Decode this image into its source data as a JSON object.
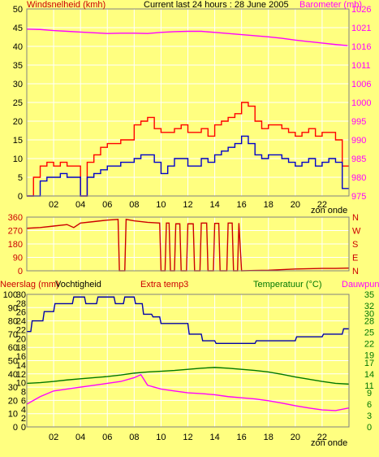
{
  "header": {
    "title": "Current last 24 hours : 28 June 2005",
    "left_label": "Windsnelheid (kmh)",
    "right_label": "Barometer (mb)"
  },
  "footer": {
    "sun_label_top": "zon onde",
    "sun_label_bottom": "zon onde"
  },
  "colors": {
    "background": "#ffff80",
    "grid": "#ffffff",
    "wind_gust": "#ff0000",
    "wind_avg": "#0000cc",
    "barometer": "#ff00ff",
    "direction": "#cc0000",
    "humidity": "#0000aa",
    "temperature": "#007700",
    "dewpoint": "#ff00ff",
    "axis_red": "#cc0000",
    "axis_green": "#007700"
  },
  "chart_data": [
    {
      "id": "wind",
      "type": "line",
      "xticks": [
        "02",
        "04",
        "06",
        "08",
        "10",
        "12",
        "14",
        "16",
        "18",
        "20",
        "22"
      ],
      "left_axis": {
        "label": "Windsnelheid (kmh)",
        "ticks": [
          0,
          5,
          10,
          15,
          20,
          25,
          30,
          35,
          40,
          45,
          50
        ],
        "ylim": [
          0,
          50
        ]
      },
      "right_axis": {
        "label": "Barometer (mb)",
        "ticks": [
          975,
          980,
          985,
          990,
          995,
          1000,
          1006,
          1011,
          1016,
          1021,
          1026
        ],
        "ylim": [
          975,
          1026
        ]
      },
      "x_range": [
        0,
        24
      ],
      "series": [
        {
          "name": "Windsnelheid (kmh)",
          "role": "gust",
          "x": [
            0.0,
            0.5,
            1.0,
            1.5,
            2.0,
            2.5,
            3.0,
            3.5,
            4.0,
            4.5,
            5.0,
            5.5,
            6.0,
            6.5,
            7.0,
            7.5,
            8.0,
            8.5,
            9.0,
            9.5,
            10.0,
            10.5,
            11.0,
            11.5,
            12.0,
            12.5,
            13.0,
            13.5,
            14.0,
            14.5,
            15.0,
            15.5,
            16.0,
            16.5,
            17.0,
            17.5,
            18.0,
            18.5,
            19.0,
            19.5,
            20.0,
            20.5,
            21.0,
            21.5,
            22.0,
            22.5,
            23.0,
            23.5
          ],
          "values": [
            0,
            5,
            8,
            9,
            8,
            9,
            8,
            8,
            0,
            9,
            11,
            13,
            14,
            14,
            15,
            15,
            19,
            20,
            21,
            18,
            17,
            17,
            18,
            19,
            17,
            17,
            18,
            16,
            19,
            20,
            21,
            22,
            25,
            24,
            20,
            18,
            19,
            19,
            18,
            17,
            16,
            17,
            18,
            16,
            17,
            17,
            15,
            8
          ]
        },
        {
          "name": "Windsnelheid (kmh)",
          "role": "average",
          "x": [
            0.0,
            0.5,
            1.0,
            1.5,
            2.0,
            2.5,
            3.0,
            3.5,
            4.0,
            4.5,
            5.0,
            5.5,
            6.0,
            6.5,
            7.0,
            7.5,
            8.0,
            8.5,
            9.0,
            9.5,
            10.0,
            10.5,
            11.0,
            11.5,
            12.0,
            12.5,
            13.0,
            13.5,
            14.0,
            14.5,
            15.0,
            15.5,
            16.0,
            16.5,
            17.0,
            17.5,
            18.0,
            18.5,
            19.0,
            19.5,
            20.0,
            20.5,
            21.0,
            21.5,
            22.0,
            22.5,
            23.0,
            23.5
          ],
          "values": [
            0,
            0,
            4,
            5,
            5,
            6,
            5,
            5,
            0,
            5,
            6,
            7,
            8,
            8,
            9,
            9,
            10,
            11,
            11,
            9,
            6,
            8,
            10,
            10,
            8,
            8,
            10,
            9,
            11,
            12,
            13,
            14,
            16,
            14,
            11,
            10,
            11,
            11,
            10,
            9,
            8,
            9,
            10,
            8,
            9,
            10,
            9,
            2
          ]
        },
        {
          "name": "Barometer (mb)",
          "role": "barometer",
          "x": [
            0,
            1,
            2,
            3,
            4,
            5,
            6,
            7,
            8,
            9,
            10,
            11,
            12,
            13,
            14,
            15,
            16,
            17,
            18,
            19,
            20,
            21,
            22,
            23,
            23.9
          ],
          "values": [
            1020.5,
            1020.4,
            1020.1,
            1019.9,
            1019.7,
            1019.5,
            1019.3,
            1019.4,
            1019.4,
            1019.3,
            1019.6,
            1019.8,
            1019.9,
            1019.9,
            1019.6,
            1019.3,
            1019.0,
            1018.7,
            1018.4,
            1018.0,
            1017.5,
            1017.1,
            1016.7,
            1016.3,
            1016.0
          ]
        }
      ]
    },
    {
      "id": "direction",
      "type": "line",
      "left_axis": {
        "ticks": [
          0,
          90,
          180,
          270,
          360
        ],
        "ylim": [
          0,
          360
        ]
      },
      "right_axis": {
        "ticks": [
          "N",
          "W",
          "S",
          "E",
          "N"
        ]
      },
      "x_range": [
        0,
        24
      ],
      "series": [
        {
          "name": "direction",
          "x": [
            0,
            1,
            2,
            3,
            3.5,
            4,
            5,
            6,
            6.8,
            6.9,
            7.3,
            7.4,
            8,
            9,
            9.9,
            10,
            10.3,
            10.4,
            10.6,
            10.7,
            11,
            11.1,
            11.4,
            11.5,
            11.9,
            12,
            12.4,
            12.5,
            12.9,
            13,
            13.4,
            13.5,
            13.9,
            14,
            14.3,
            14.4,
            14.9,
            15,
            15.3,
            15.4,
            15.7,
            15.8,
            16,
            17,
            18,
            19,
            20,
            21,
            22,
            23,
            24
          ],
          "values": [
            285,
            290,
            300,
            310,
            290,
            320,
            330,
            340,
            345,
            0,
            0,
            345,
            335,
            325,
            320,
            0,
            0,
            320,
            320,
            0,
            0,
            315,
            315,
            0,
            0,
            315,
            315,
            0,
            0,
            320,
            320,
            0,
            0,
            318,
            318,
            0,
            0,
            320,
            320,
            0,
            0,
            320,
            0,
            2,
            4,
            8,
            12,
            14,
            16,
            16,
            18
          ]
        }
      ]
    },
    {
      "id": "humidity-temp",
      "type": "line",
      "xticks": [
        "02",
        "04",
        "06",
        "08",
        "10",
        "12",
        "14",
        "16",
        "18",
        "20",
        "22"
      ],
      "axes": {
        "Neerslag (mm)": {
          "ticks": [
            0,
            2,
            4,
            6,
            8,
            10,
            12,
            14,
            16,
            18,
            20,
            22,
            24,
            26,
            28,
            30
          ],
          "ylim": [
            0,
            30
          ]
        },
        "Vochtigheid": {
          "ticks": [
            0,
            10,
            20,
            30,
            40,
            50,
            60,
            70,
            80,
            90,
            100
          ],
          "ylim": [
            0,
            100
          ]
        },
        "Temperatuur (°C)": {
          "ticks": [
            0,
            3,
            6,
            9,
            11,
            14,
            17,
            19,
            22,
            25,
            28,
            30,
            32,
            35
          ],
          "ylim": [
            0,
            35
          ]
        }
      },
      "labels": {
        "precip": "Neerslag (mm)",
        "humidity": "Vochtigheid",
        "extra": "Extra temp3",
        "temp": "Temperatuur (°C)",
        "dew": "Dauwpunt"
      },
      "x_range": [
        0,
        24
      ],
      "series": [
        {
          "name": "Vochtigheid",
          "axis": "Vochtigheid",
          "x": [
            0,
            0.3,
            0.4,
            1.2,
            1.3,
            2.0,
            2.1,
            3.4,
            3.5,
            4.3,
            4.4,
            5.2,
            5.3,
            6.5,
            6.6,
            7.2,
            7.3,
            8.0,
            8.1,
            8.6,
            8.7,
            9.3,
            9.4,
            9.9,
            10,
            12.0,
            12.1,
            13.0,
            13.1,
            14.0,
            14.1,
            17.0,
            17.1,
            20.0,
            20.1,
            22.0,
            22.1,
            23.5,
            23.6,
            24
          ],
          "values": [
            72,
            72,
            80,
            80,
            87,
            87,
            93,
            93,
            98,
            98,
            93,
            93,
            98,
            98,
            93,
            93,
            98,
            98,
            93,
            93,
            85,
            85,
            83,
            83,
            78,
            78,
            70,
            70,
            65,
            65,
            63,
            63,
            65,
            65,
            68,
            68,
            70,
            70,
            74,
            74
          ]
        },
        {
          "name": "Temperatuur (°C)",
          "axis": "Temperatuur (°C)",
          "x": [
            0,
            1,
            2,
            3,
            4,
            5,
            6,
            7,
            8,
            9,
            10,
            11,
            12,
            13,
            14,
            15,
            16,
            17,
            18,
            19,
            20,
            21,
            22,
            23,
            24
          ],
          "values": [
            11.5,
            11.7,
            12.0,
            12.4,
            12.7,
            13.0,
            13.3,
            13.7,
            14.2,
            14.5,
            14.7,
            14.9,
            15.2,
            15.5,
            15.7,
            15.5,
            15.2,
            14.9,
            14.5,
            13.9,
            13.2,
            12.6,
            12.0,
            11.5,
            11.3
          ]
        },
        {
          "name": "Dauwpunt",
          "axis": "Temperatuur (°C)",
          "x": [
            0,
            0.5,
            1,
            2,
            3,
            4,
            5,
            6,
            7,
            8,
            8.5,
            9,
            10,
            11,
            12,
            13,
            14,
            15,
            16,
            17,
            18,
            19,
            20,
            21,
            22,
            23,
            24
          ],
          "values": [
            6.0,
            7.0,
            8.0,
            9.5,
            10.0,
            10.5,
            11.0,
            11.5,
            12.0,
            13.0,
            13.8,
            11.0,
            10.0,
            9.5,
            9.0,
            8.8,
            8.5,
            8.0,
            7.7,
            7.4,
            6.9,
            6.3,
            5.6,
            5.0,
            4.5,
            4.3,
            5.0
          ]
        }
      ]
    }
  ]
}
